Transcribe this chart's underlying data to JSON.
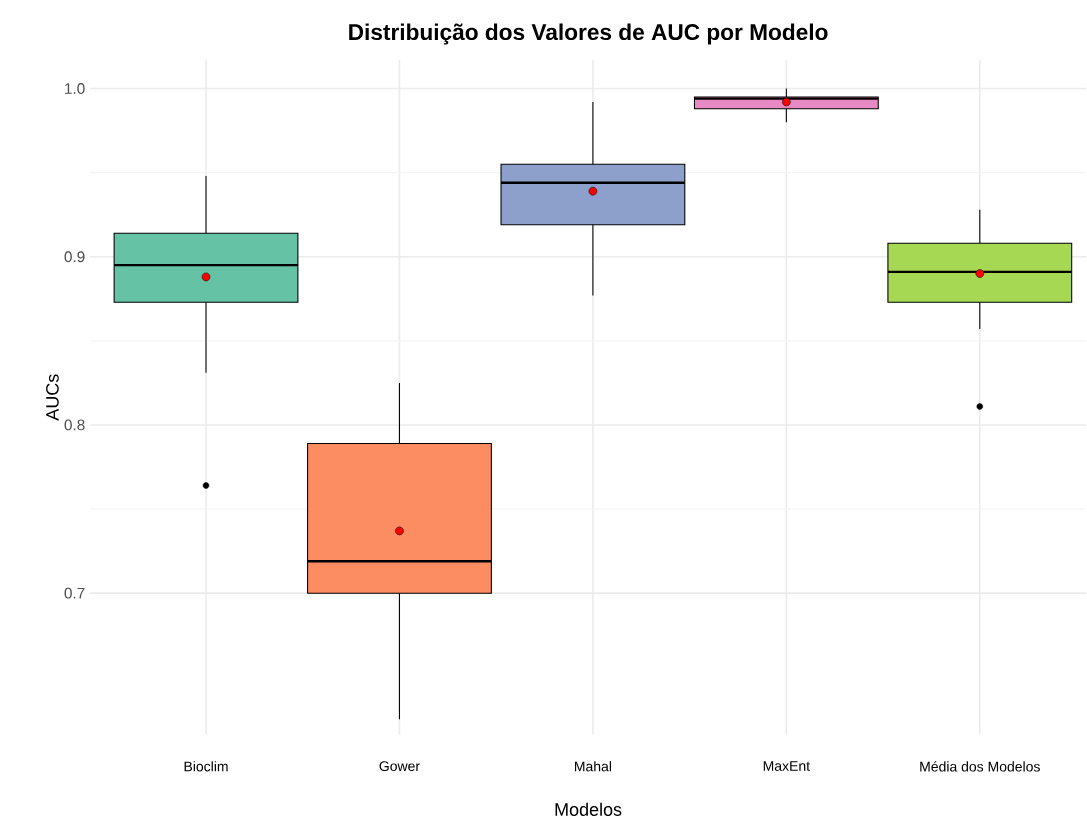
{
  "chart_data": {
    "type": "box",
    "title": "Distribuição dos Valores de AUC por Modelo",
    "xlabel": "Modelos",
    "ylabel": "AUCs",
    "categories": [
      "Bioclim",
      "Gower",
      "Mahal",
      "MaxEnt",
      "Média dos Modelos"
    ],
    "colors": [
      "#66c2a5",
      "#fc8d62",
      "#8da0cb",
      "#e78ac3",
      "#a6d854"
    ],
    "boxes": [
      {
        "low": 0.831,
        "q1": 0.873,
        "median": 0.895,
        "q3": 0.914,
        "high": 0.948,
        "mean": 0.888,
        "outliers": [
          0.764
        ]
      },
      {
        "low": 0.625,
        "q1": 0.7,
        "median": 0.719,
        "q3": 0.789,
        "high": 0.825,
        "mean": 0.737
      },
      {
        "low": 0.877,
        "q1": 0.919,
        "median": 0.944,
        "q3": 0.955,
        "high": 0.992,
        "mean": 0.939
      },
      {
        "low": 0.98,
        "q1": 0.988,
        "median": 0.994,
        "q3": 0.995,
        "high": 1.0,
        "mean": 0.992
      },
      {
        "low": 0.857,
        "q1": 0.873,
        "median": 0.891,
        "q3": 0.908,
        "high": 0.928,
        "mean": 0.89,
        "outliers": [
          0.811
        ]
      }
    ],
    "ylim": [
      0.616,
      1.017
    ],
    "yticks": [
      {
        "value": 0.7,
        "label": "0.7"
      },
      {
        "value": 0.8,
        "label": "0.8"
      },
      {
        "value": 0.9,
        "label": "0.9"
      },
      {
        "value": 1.0,
        "label": "1.0"
      }
    ],
    "grid": true
  }
}
